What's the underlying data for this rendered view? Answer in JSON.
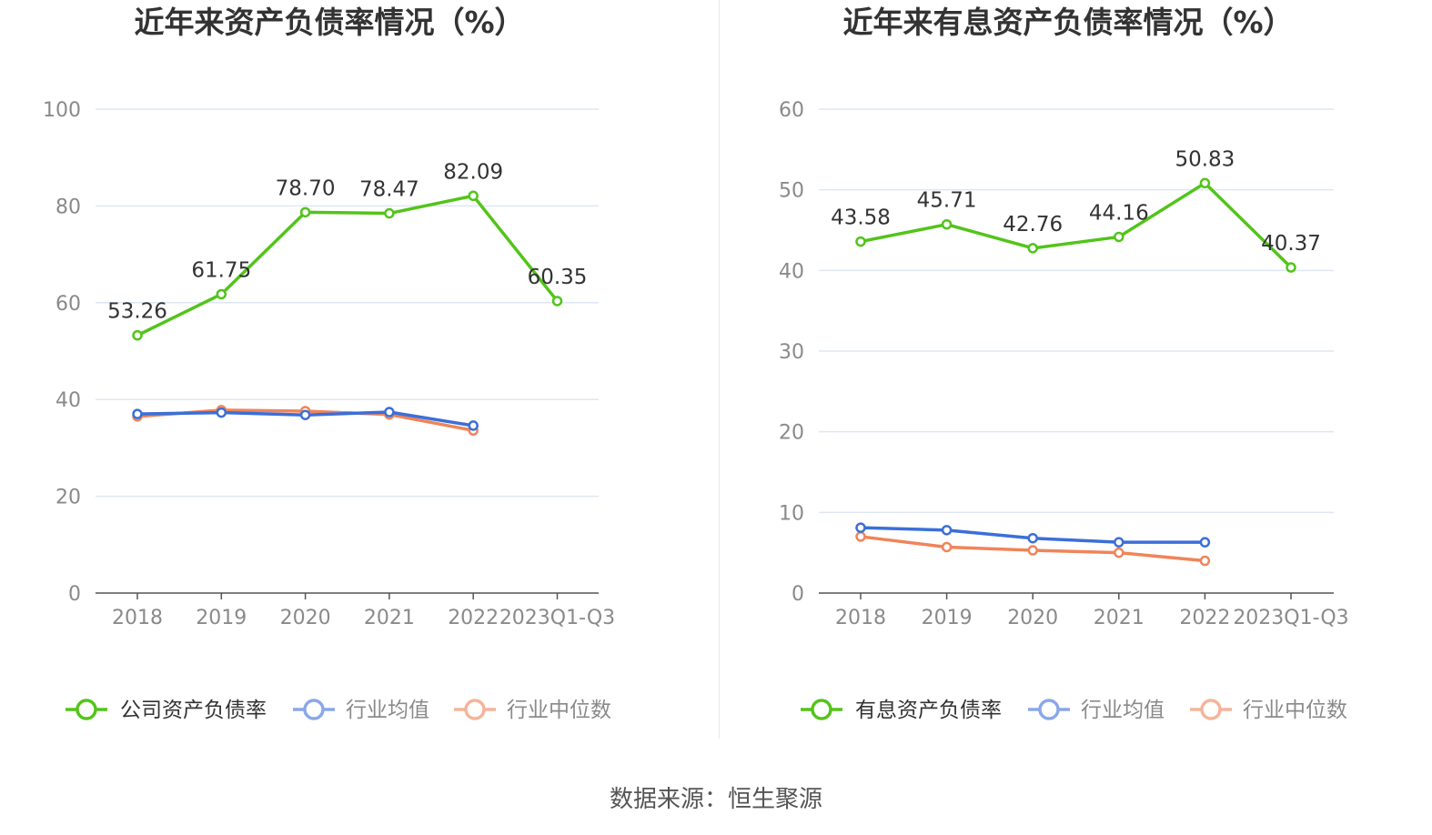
{
  "source": {
    "text": "数据来源：恒生聚源"
  },
  "colors": {
    "company": "#52c41a",
    "avg": "#3b6fd8",
    "median": "#f0845a",
    "avg_legend": "#8aa7ea",
    "median_legend": "#f5b49a",
    "grid": "#dfe6f3",
    "axis": "#555555"
  },
  "chart_data": [
    {
      "type": "line",
      "title": "近年来资产负债率情况（%）",
      "categories": [
        "2018",
        "2019",
        "2020",
        "2021",
        "2022",
        "2023Q1-Q3"
      ],
      "ylim": [
        0,
        100
      ],
      "yticks": [
        0,
        20,
        40,
        60,
        80,
        100
      ],
      "grid": true,
      "legend_position": "bottom",
      "series": [
        {
          "name": "公司资产负债率",
          "key": "company",
          "values": [
            53.26,
            61.75,
            78.7,
            78.47,
            82.09,
            60.35
          ],
          "labels": [
            "53.26",
            "61.75",
            "78.70",
            "78.47",
            "82.09",
            "60.35"
          ]
        },
        {
          "name": "行业均值",
          "key": "avg",
          "values": [
            37.0,
            37.3,
            36.8,
            37.4,
            34.6,
            null
          ]
        },
        {
          "name": "行业中位数",
          "key": "median",
          "values": [
            36.5,
            37.8,
            37.6,
            36.9,
            33.6,
            null
          ]
        }
      ]
    },
    {
      "type": "line",
      "title": "近年来有息资产负债率情况（%）",
      "categories": [
        "2018",
        "2019",
        "2020",
        "2021",
        "2022",
        "2023Q1-Q3"
      ],
      "ylim": [
        0,
        60
      ],
      "yticks": [
        0,
        10,
        20,
        30,
        40,
        50,
        60
      ],
      "grid": true,
      "legend_position": "bottom",
      "series": [
        {
          "name": "有息资产负债率",
          "key": "company",
          "values": [
            43.58,
            45.71,
            42.76,
            44.16,
            50.83,
            40.37
          ],
          "labels": [
            "43.58",
            "45.71",
            "42.76",
            "44.16",
            "50.83",
            "40.37"
          ]
        },
        {
          "name": "行业均值",
          "key": "avg",
          "values": [
            8.1,
            7.8,
            6.8,
            6.3,
            6.3,
            null
          ]
        },
        {
          "name": "行业中位数",
          "key": "median",
          "values": [
            7.0,
            5.7,
            5.3,
            5.0,
            4.0,
            null
          ]
        }
      ]
    }
  ]
}
